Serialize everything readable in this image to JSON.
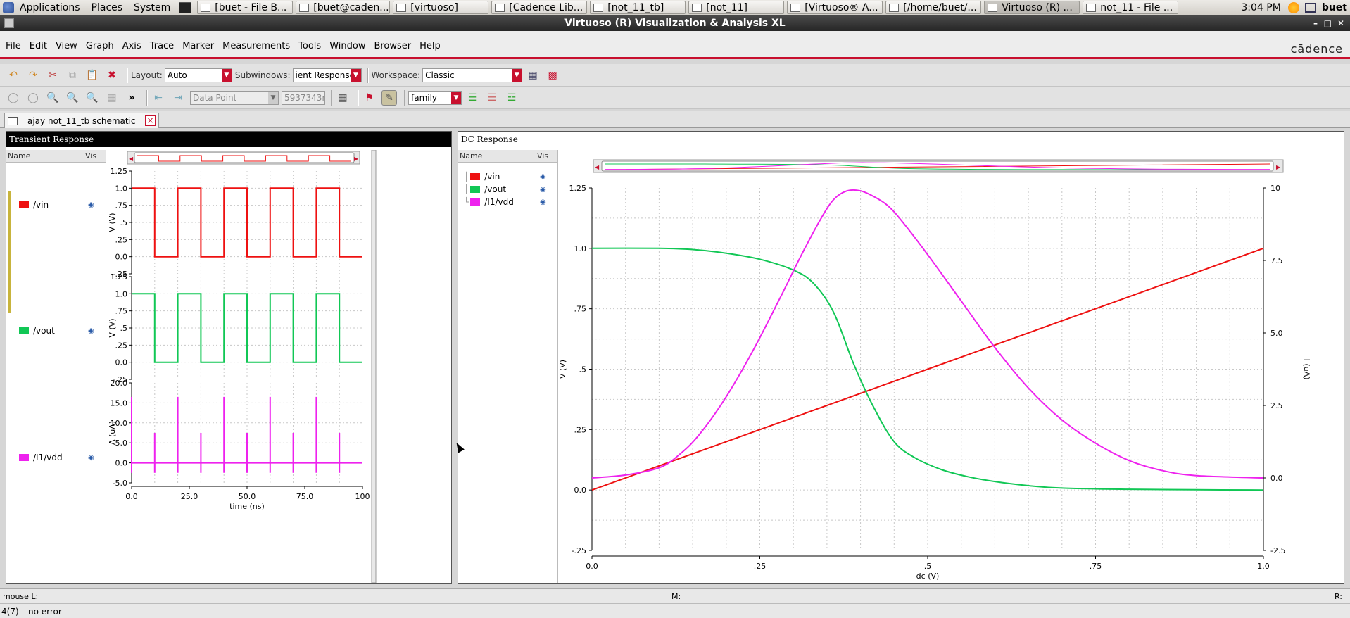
{
  "taskbar": {
    "menus": [
      "Applications",
      "Places",
      "System"
    ],
    "tasks": [
      {
        "label": "[buet - File B...",
        "width": 136
      },
      {
        "label": "[buet@caden...",
        "width": 134
      },
      {
        "label": "[virtuoso]",
        "width": 136
      },
      {
        "label": "[Cadence Lib...",
        "width": 136
      },
      {
        "label": "[not_11_tb]",
        "width": 136
      },
      {
        "label": "[not_11]",
        "width": 136
      },
      {
        "label": "[Virtuoso® A...",
        "width": 136
      },
      {
        "label": "[/home/buet/...",
        "width": 136
      },
      {
        "label": "Virtuoso (R) ...",
        "width": 136
      },
      {
        "label": "not_11 - File ...",
        "width": 136
      }
    ],
    "clock": "3:04 PM",
    "user": "buet"
  },
  "window": {
    "title": "Virtuoso (R) Visualization & Analysis XL",
    "brand": "cādence"
  },
  "menubar": [
    "File",
    "Edit",
    "View",
    "Graph",
    "Axis",
    "Trace",
    "Marker",
    "Measurements",
    "Tools",
    "Window",
    "Browser",
    "Help"
  ],
  "toolbar1": {
    "layout_label": "Layout:",
    "layout_value": "Auto",
    "subwindows_label": "Subwindows:",
    "subwindows_value": "ient Response",
    "workspace_label": "Workspace:",
    "workspace_value": "Classic"
  },
  "toolbar2": {
    "chevron": "»",
    "marker_type": "Data Point",
    "marker_value": "5937343n",
    "family_value": "family"
  },
  "doc_tab": {
    "label": "ajay not_11_tb schematic"
  },
  "transient": {
    "title": "Transient Response",
    "legend_header": {
      "name": "Name",
      "vis": "Vis"
    },
    "colors": {
      "vin": "#ee1111",
      "vout": "#11c755",
      "vdd": "#ee22ee"
    },
    "signals": [
      "/vin",
      "/vout",
      "/I1/vdd"
    ],
    "plot1": {
      "ylabel": "V (V)",
      "ticks": [
        "1.25",
        "1.0",
        ".75",
        ".5",
        ".25",
        "0.0",
        "-.25"
      ],
      "tick_values": [
        1.25,
        1.0,
        0.75,
        0.5,
        0.25,
        0.0,
        -0.25
      ]
    },
    "plot2": {
      "ylabel": "V (V)",
      "ticks": [
        "1.25",
        "1.0",
        ".75",
        ".5",
        ".25",
        "0.0",
        "-.25"
      ],
      "tick_values": [
        1.25,
        1.0,
        0.75,
        0.5,
        0.25,
        0.0,
        -0.25
      ]
    },
    "plot3": {
      "ylabel": "A (uA)",
      "ticks": [
        "20.0",
        "15.0",
        "10.0",
        "5.0",
        "0.0",
        "-5.0"
      ],
      "tick_values": [
        20,
        15,
        10,
        5,
        0,
        -5
      ]
    },
    "xaxis": {
      "label": "time (ns)",
      "ticks": [
        "0.0",
        "25.0",
        "50.0",
        "75.0",
        "100"
      ],
      "tick_values": [
        0,
        25,
        50,
        75,
        100
      ]
    }
  },
  "chart_data": [
    {
      "type": "line",
      "title": "Transient Response",
      "xlabel": "time (ns)",
      "xlim": [
        0,
        100
      ],
      "series": [
        {
          "name": "/vin",
          "ylabel": "V (V)",
          "ylim": [
            -0.25,
            1.25
          ],
          "x": [
            0,
            10,
            10,
            20,
            20,
            30,
            30,
            40,
            40,
            50,
            50,
            60,
            60,
            70,
            70,
            80,
            80,
            90,
            90,
            100
          ],
          "values": [
            1,
            1,
            0,
            0,
            1,
            1,
            0,
            0,
            1,
            1,
            0,
            0,
            1,
            1,
            0,
            0,
            1,
            1,
            0,
            0
          ]
        },
        {
          "name": "/vout",
          "ylabel": "V (V)",
          "ylim": [
            -0.25,
            1.25
          ],
          "x": [
            0,
            10,
            10,
            20,
            20,
            30,
            30,
            40,
            40,
            50,
            50,
            60,
            60,
            70,
            70,
            80,
            80,
            90,
            90,
            100
          ],
          "values": [
            1,
            1,
            0,
            0,
            1,
            1,
            0,
            0,
            1,
            1,
            0,
            0,
            1,
            1,
            0,
            0,
            1,
            1,
            0,
            0
          ]
        },
        {
          "name": "/I1/vdd",
          "ylabel": "A (uA)",
          "ylim": [
            -5,
            20
          ],
          "spikes_x": [
            0,
            10,
            20,
            30,
            40,
            50,
            60,
            70,
            80,
            90
          ],
          "spikes_peak": [
            16.5,
            7.5,
            16.5,
            7.5,
            16.5,
            7.5,
            16.5,
            7.5,
            16.5,
            7.5
          ],
          "baseline": 0,
          "dip": -2.5
        }
      ]
    },
    {
      "type": "line",
      "title": "DC Response",
      "xlabel": "dc (V)",
      "xlim": [
        0,
        1.0
      ],
      "ylabel": "V (V)",
      "ylim": [
        -0.25,
        1.25
      ],
      "y2label": "I (uA)",
      "y2lim": [
        -2.5,
        10
      ],
      "x_ticks": [
        "0.0",
        ".25",
        ".5",
        ".75",
        "1.0"
      ],
      "x_tick_values": [
        0,
        0.25,
        0.5,
        0.75,
        1.0
      ],
      "y_ticks": [
        "1.25",
        "1.0",
        ".75",
        ".5",
        ".25",
        "0.0",
        "-.25"
      ],
      "y_tick_values": [
        1.25,
        1.0,
        0.75,
        0.5,
        0.25,
        0.0,
        -0.25
      ],
      "y2_ticks": [
        "10",
        "7.5",
        "5.0",
        "2.5",
        "0.0",
        "-2.5"
      ],
      "y2_tick_values": [
        10,
        7.5,
        5,
        2.5,
        0,
        -2.5
      ],
      "series": [
        {
          "name": "/vin",
          "axis": "left",
          "x": [
            0,
            1.0
          ],
          "values": [
            0,
            1.0
          ]
        },
        {
          "name": "/vout",
          "axis": "left",
          "x": [
            0,
            0.1,
            0.15,
            0.2,
            0.25,
            0.3,
            0.33,
            0.36,
            0.39,
            0.42,
            0.45,
            0.48,
            0.52,
            0.56,
            0.6,
            0.65,
            0.7,
            0.8,
            0.9,
            1.0
          ],
          "values": [
            1.0,
            1.0,
            0.995,
            0.98,
            0.955,
            0.91,
            0.855,
            0.735,
            0.52,
            0.34,
            0.2,
            0.135,
            0.085,
            0.055,
            0.035,
            0.018,
            0.008,
            0.003,
            0.001,
            0.0
          ]
        },
        {
          "name": "/I1/vdd",
          "axis": "right",
          "x": [
            0,
            0.05,
            0.1,
            0.13,
            0.16,
            0.2,
            0.24,
            0.28,
            0.31,
            0.34,
            0.36,
            0.38,
            0.4,
            0.42,
            0.44,
            0.46,
            0.5,
            0.55,
            0.6,
            0.65,
            0.7,
            0.75,
            0.8,
            0.85,
            0.9,
            1.0
          ],
          "values": [
            0.0,
            0.1,
            0.35,
            0.8,
            1.5,
            2.8,
            4.4,
            6.2,
            7.6,
            8.9,
            9.6,
            9.9,
            9.9,
            9.7,
            9.4,
            8.9,
            7.7,
            6.1,
            4.5,
            3.1,
            2.0,
            1.2,
            0.6,
            0.25,
            0.08,
            0.0
          ]
        }
      ]
    }
  ],
  "dc": {
    "title": "DC Response",
    "legend_header": {
      "name": "Name",
      "vis": "Vis"
    },
    "signals": [
      "/vin",
      "/vout",
      "/I1/vdd"
    ],
    "ylabel": "V (V)",
    "y2label": "I (uA)",
    "xlabel": "dc (V)"
  },
  "status": {
    "mouse_l": "mouse L:",
    "m": "M:",
    "r": "R:",
    "count": "4(7)",
    "message": "no error"
  }
}
